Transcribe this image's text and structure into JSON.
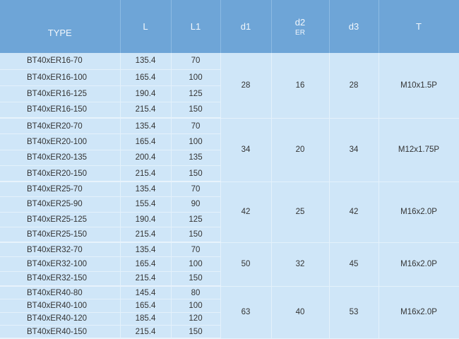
{
  "headers": {
    "type": "TYPE",
    "L": "L",
    "L1": "L1",
    "d1": "d1",
    "d2": "d2",
    "d2_sub": "ER",
    "d3": "d3",
    "T": "T"
  },
  "groups": [
    {
      "d1": "28",
      "d2": "16",
      "d3": "28",
      "T": "M10x1.5P",
      "rows": [
        {
          "type": "BT40xER16-70",
          "L": "135.4",
          "L1": "70"
        },
        {
          "type": "BT40xER16-100",
          "L": "165.4",
          "L1": "100"
        },
        {
          "type": "BT40xER16-125",
          "L": "190.4",
          "L1": "125"
        },
        {
          "type": "BT40xER16-150",
          "L": "215.4",
          "L1": "150"
        }
      ]
    },
    {
      "d1": "34",
      "d2": "20",
      "d3": "34",
      "T": "M12x1.75P",
      "rows": [
        {
          "type": "BT40xER20-70",
          "L": "135.4",
          "L1": "70"
        },
        {
          "type": "BT40xER20-100",
          "L": "165.4",
          "L1": "100"
        },
        {
          "type": "BT40xER20-135",
          "L": "200.4",
          "L1": "135"
        },
        {
          "type": "BT40xER20-150",
          "L": "215.4",
          "L1": "150"
        }
      ]
    },
    {
      "d1": "42",
      "d2": "25",
      "d3": "42",
      "T": "M16x2.0P",
      "rows": [
        {
          "type": "BT40xER25-70",
          "L": "135.4",
          "L1": "70"
        },
        {
          "type": "BT40xER25-90",
          "L": "155.4",
          "L1": "90"
        },
        {
          "type": "BT40xER25-125",
          "L": "190.4",
          "L1": "125"
        },
        {
          "type": "BT40xER25-150",
          "L": "215.4",
          "L1": "150"
        }
      ]
    },
    {
      "d1": "50",
      "d2": "32",
      "d3": "45",
      "T": "M16x2.0P",
      "rows": [
        {
          "type": "BT40xER32-70",
          "L": "135.4",
          "L1": "70"
        },
        {
          "type": "BT40xER32-100",
          "L": "165.4",
          "L1": "100"
        },
        {
          "type": "BT40xER32-150",
          "L": "215.4",
          "L1": "150"
        }
      ]
    },
    {
      "d1": "63",
      "d2": "40",
      "d3": "53",
      "T": "M16x2.0P",
      "rows": [
        {
          "type": "BT40xER40-80",
          "L": "145.4",
          "L1": "80"
        },
        {
          "type": "BT40xER40-100",
          "L": "165.4",
          "L1": "100"
        },
        {
          "type": "BT40xER40-120",
          "L": "185.4",
          "L1": "120"
        },
        {
          "type": "BT40xER40-150",
          "L": "215.4",
          "L1": "150"
        }
      ]
    }
  ]
}
